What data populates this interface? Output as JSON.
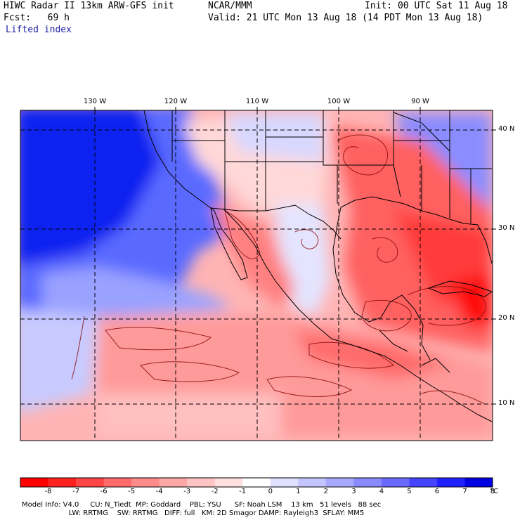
{
  "header": {
    "line1_left": "HIWC Radar II 13km ARW-GFS init",
    "line1_mid": "NCAR/MMM",
    "line1_right": "Init: 00 UTC Sat 11 Aug 18",
    "line2_left": "Fcst:   69 h",
    "line2_right": "Valid: 21 UTC Mon 13 Aug 18 (14 PDT Mon 13 Aug 18)",
    "field_name": "Lifted index"
  },
  "map": {
    "lon_labels": [
      "130 W",
      "120 W",
      "110 W",
      "100 W",
      "90 W"
    ],
    "lat_labels": [
      "40 N",
      "30 N",
      "20 N",
      "10 N"
    ]
  },
  "colorbar": {
    "labels": [
      "-8",
      "-7",
      "-6",
      "-5",
      "-4",
      "-3",
      "-2",
      "-1",
      "0",
      "1",
      "2",
      "3",
      "4",
      "5",
      "6",
      "7",
      "8",
      "°C"
    ],
    "colors": [
      "#ff0000",
      "#ff2020",
      "#ff4545",
      "#ff6a6a",
      "#ff8a8a",
      "#ffa8a8",
      "#ffc4c4",
      "#ffe0e0",
      "#ffffff",
      "#e0e0ff",
      "#c4c4ff",
      "#a8a8ff",
      "#8a8aff",
      "#6a6aff",
      "#4545ff",
      "#2020ff",
      "#0000e0"
    ]
  },
  "footer": {
    "line1": "Model Info: V4.0     CU: N_Tiedt  MP: Goddard    PBL: YSU      SF: Noah LSM    13 km   51 levels   88 sec",
    "line2": "                     LW: RRTMG    SW: RRTMG   DIFF: full   KM: 2D Smagor DAMP: Rayleigh3  SFLAY: MM5"
  }
}
